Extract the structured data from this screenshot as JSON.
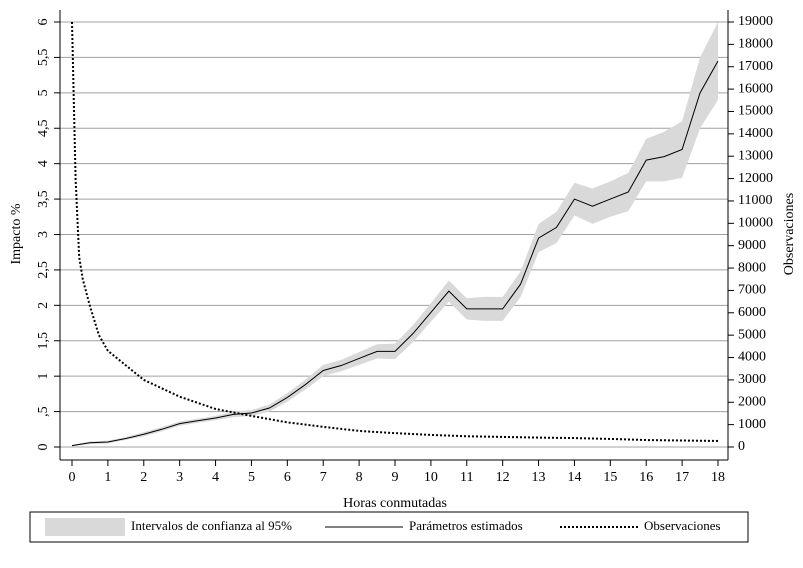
{
  "chart_data": {
    "type": "line",
    "xlabel": "Horas conmutadas",
    "ylabel": "Impacto %",
    "y2label": "Observaciones",
    "x": [
      0,
      0.5,
      1,
      1.5,
      2,
      2.5,
      3,
      3.5,
      4,
      4.5,
      5,
      5.5,
      6,
      6.5,
      7,
      7.5,
      8,
      8.5,
      9,
      9.5,
      10,
      10.5,
      11,
      11.5,
      12,
      12.5,
      13,
      13.5,
      14,
      14.5,
      15,
      15.5,
      16,
      16.5,
      17,
      17.5,
      18
    ],
    "series": [
      {
        "name": "Intervalos de confianza al 95%",
        "color": "#d9d9d9",
        "lower": [
          0.01,
          0.04,
          0.05,
          0.1,
          0.15,
          0.22,
          0.3,
          0.34,
          0.38,
          0.42,
          0.44,
          0.5,
          0.64,
          0.81,
          1.0,
          1.07,
          1.16,
          1.25,
          1.24,
          1.48,
          1.77,
          2.05,
          1.8,
          1.78,
          1.78,
          2.12,
          2.75,
          2.88,
          3.27,
          3.15,
          3.25,
          3.33,
          3.75,
          3.75,
          3.8,
          4.5,
          4.9
        ],
        "upper": [
          0.03,
          0.08,
          0.09,
          0.14,
          0.21,
          0.28,
          0.36,
          0.4,
          0.44,
          0.5,
          0.52,
          0.6,
          0.76,
          0.95,
          1.16,
          1.23,
          1.34,
          1.45,
          1.46,
          1.72,
          2.03,
          2.35,
          2.1,
          2.12,
          2.12,
          2.48,
          3.15,
          3.32,
          3.73,
          3.65,
          3.75,
          3.87,
          4.35,
          4.45,
          4.6,
          5.5,
          6.0
        ]
      },
      {
        "name": "Parámetros estimados",
        "color": "#000000",
        "values": [
          0.02,
          0.06,
          0.07,
          0.12,
          0.18,
          0.25,
          0.33,
          0.37,
          0.41,
          0.46,
          0.48,
          0.55,
          0.7,
          0.88,
          1.08,
          1.15,
          1.25,
          1.35,
          1.35,
          1.6,
          1.9,
          2.2,
          1.95,
          1.95,
          1.95,
          2.3,
          2.95,
          3.1,
          3.5,
          3.4,
          3.5,
          3.6,
          4.05,
          4.1,
          4.2,
          5.0,
          5.45
        ]
      },
      {
        "name": "Observaciones",
        "color": "#000000",
        "axis": "y2",
        "line_style": "dotted",
        "x": [
          0,
          0.1,
          0.2,
          0.3,
          0.5,
          0.75,
          1,
          1.5,
          2,
          3,
          4,
          5,
          6,
          7,
          8,
          9,
          10,
          11,
          12,
          13,
          14,
          15,
          16,
          17,
          18
        ],
        "values": [
          19000,
          12000,
          8500,
          7500,
          6300,
          5000,
          4300,
          3650,
          3000,
          2250,
          1700,
          1390,
          1100,
          900,
          720,
          620,
          540,
          480,
          450,
          420,
          400,
          360,
          310,
          290,
          270
        ]
      }
    ],
    "xlim": [
      0,
      18
    ],
    "xticks": [
      0,
      1,
      2,
      3,
      4,
      5,
      6,
      7,
      8,
      9,
      10,
      11,
      12,
      13,
      14,
      15,
      16,
      17,
      18
    ],
    "ylim": [
      0,
      6
    ],
    "yticks": [
      0,
      {
        "value": 0.5,
        "label": ",5"
      },
      1,
      {
        "value": 1.5,
        "label": "1,5"
      },
      2,
      {
        "value": 2.5,
        "label": "2,5"
      },
      3,
      {
        "value": 3.5,
        "label": "3,5"
      },
      4,
      {
        "value": 4.5,
        "label": "4,5"
      },
      5,
      {
        "value": 5.5,
        "label": "5,5"
      },
      6
    ],
    "y2lim": [
      0,
      19000
    ],
    "y2ticks": [
      0,
      1000,
      2000,
      3000,
      4000,
      5000,
      6000,
      7000,
      8000,
      9000,
      10000,
      11000,
      12000,
      13000,
      14000,
      15000,
      16000,
      17000,
      18000,
      19000
    ],
    "grid": true
  }
}
